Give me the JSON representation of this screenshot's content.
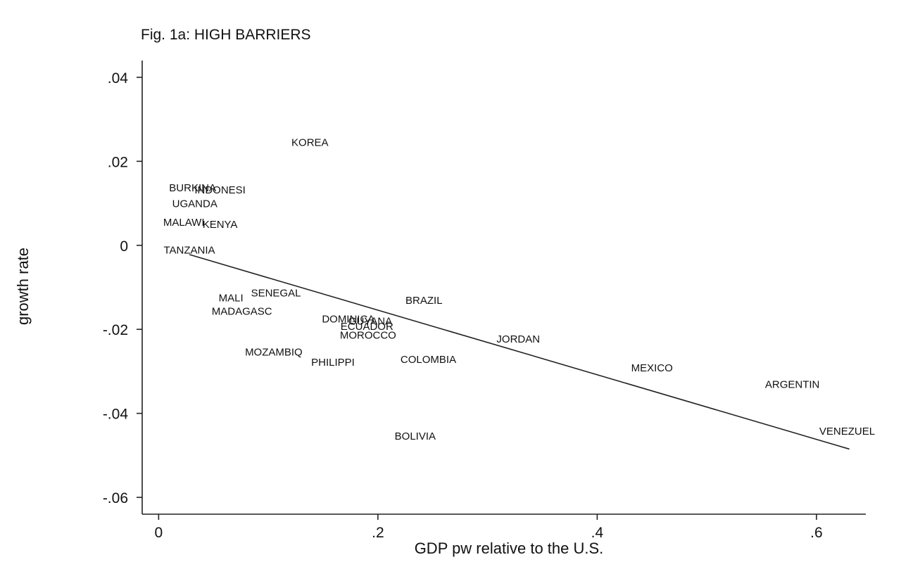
{
  "chart_data": {
    "type": "scatter",
    "title": "Fig. 1a: HIGH BARRIERS",
    "xlabel": "GDP pw relative to the U.S.",
    "ylabel": "growth rate",
    "xlim": [
      -0.015,
      0.645
    ],
    "ylim": [
      -0.064,
      0.044
    ],
    "x_ticks": [
      0,
      0.2,
      0.4,
      0.6
    ],
    "x_tick_labels": [
      "0",
      ".2",
      ".4",
      ".6"
    ],
    "y_ticks": [
      0.04,
      0.02,
      0,
      -0.02,
      -0.04,
      -0.06
    ],
    "y_tick_labels": [
      ".04",
      ".02",
      "0",
      "-.02",
      "-.04",
      "-.06"
    ],
    "grid": false,
    "legend": "none",
    "points": [
      {
        "label": "KOREA",
        "x": 0.138,
        "y": 0.0245
      },
      {
        "label": "BURKINA",
        "x": 0.031,
        "y": 0.0137
      },
      {
        "label": "INDONESI",
        "x": 0.056,
        "y": 0.0132
      },
      {
        "label": "UGANDA",
        "x": 0.033,
        "y": 0.0099
      },
      {
        "label": "MALAWI",
        "x": 0.023,
        "y": 0.0055
      },
      {
        "label": "KENYA",
        "x": 0.056,
        "y": 0.005
      },
      {
        "label": "TANZANIA",
        "x": 0.028,
        "y": -0.0011
      },
      {
        "label": "MALI",
        "x": 0.066,
        "y": -0.0125
      },
      {
        "label": "SENEGAL",
        "x": 0.107,
        "y": -0.0113
      },
      {
        "label": "MADAGASC",
        "x": 0.076,
        "y": -0.0157
      },
      {
        "label": "DOMINICA",
        "x": 0.173,
        "y": -0.0175
      },
      {
        "label": "GUYANA",
        "x": 0.193,
        "y": -0.018
      },
      {
        "label": "ECUADOR",
        "x": 0.19,
        "y": -0.0193
      },
      {
        "label": "MOROCCO",
        "x": 0.191,
        "y": -0.0214
      },
      {
        "label": "BRAZIL",
        "x": 0.242,
        "y": -0.0131
      },
      {
        "label": "JORDAN",
        "x": 0.328,
        "y": -0.0223
      },
      {
        "label": "MOZAMBIQ",
        "x": 0.105,
        "y": -0.0254
      },
      {
        "label": "PHILIPPI",
        "x": 0.159,
        "y": -0.0278
      },
      {
        "label": "COLOMBIA",
        "x": 0.246,
        "y": -0.0272
      },
      {
        "label": "MEXICO",
        "x": 0.45,
        "y": -0.0292
      },
      {
        "label": "ARGENTIN",
        "x": 0.578,
        "y": -0.0331
      },
      {
        "label": "VENEZUEL",
        "x": 0.628,
        "y": -0.0442
      },
      {
        "label": "BOLIVIA",
        "x": 0.234,
        "y": -0.0454
      }
    ],
    "fit_line": {
      "x": [
        0.028,
        0.63
      ],
      "y": [
        -0.0022,
        -0.0485
      ]
    }
  }
}
